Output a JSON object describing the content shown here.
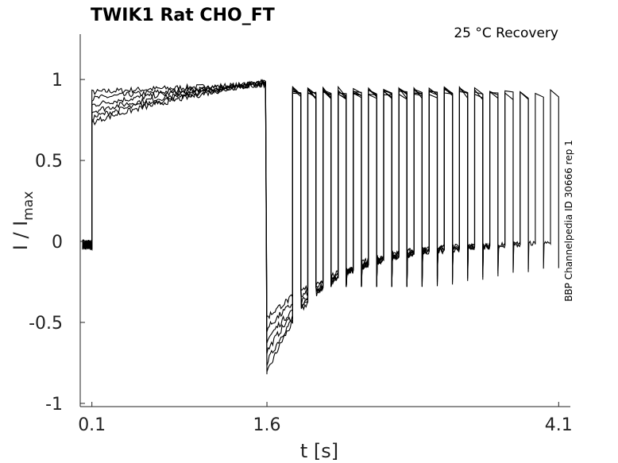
{
  "chart_data": {
    "type": "line",
    "title": "TWIK1  Rat  CHO_FT",
    "subtitle": "25 °C  Recovery",
    "xlabel": "t [s]",
    "ylabel_main": "I / I",
    "ylabel_sub": "max",
    "side_note": "BBP Channelpedia ID 30666 rep 1",
    "xlim": [
      0.0,
      4.2
    ],
    "ylim": [
      -1.02,
      1.28
    ],
    "x_ticks": [
      0.1,
      1.6,
      4.1
    ],
    "x_tick_labels": [
      "0.1",
      "1.6",
      "4.1"
    ],
    "y_ticks": [
      -1,
      -0.5,
      0,
      0.5,
      1
    ],
    "y_tick_labels": [
      "-1",
      "-0.5",
      "0",
      "0.5",
      "1"
    ],
    "grid": false,
    "legend": "none",
    "protocol": {
      "baseline": 0.0,
      "step1_on": 0.1,
      "step1_off": 1.6,
      "recovery_end": 4.1,
      "test_pulse_onsets": [
        1.82,
        1.95,
        2.08,
        2.21,
        2.34,
        2.47,
        2.6,
        2.73,
        2.86,
        2.99,
        3.12,
        3.25,
        3.38,
        3.51,
        3.64,
        3.77,
        3.9,
        4.03
      ],
      "test_pulse_width": 0.07,
      "test_pulse_peak": 0.93,
      "recovery_dip_min": -0.82,
      "late_dip_min": -0.28
    },
    "series": [
      {
        "plateau_start": 0.92,
        "plateau_end": 0.97
      },
      {
        "plateau_start": 0.88,
        "plateau_end": 0.97
      },
      {
        "plateau_start": 0.84,
        "plateau_end": 0.98
      },
      {
        "plateau_start": 0.8,
        "plateau_end": 0.98
      },
      {
        "plateau_start": 0.76,
        "plateau_end": 0.99
      },
      {
        "plateau_start": 0.73,
        "plateau_end": 0.99
      }
    ]
  }
}
